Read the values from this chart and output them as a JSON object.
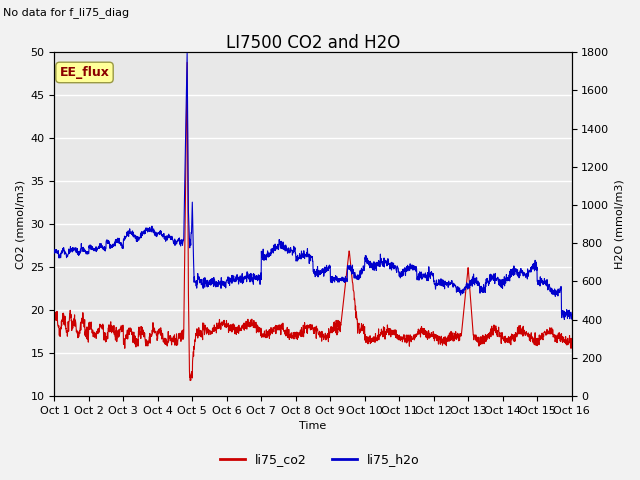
{
  "title": "LI7500 CO2 and H2O",
  "top_left_text": "No data for f_li75_diag",
  "annotation_text": "EE_flux",
  "xlabel": "Time",
  "ylabel_left": "CO2 (mmol/m3)",
  "ylabel_right": "H2O (mmol/m3)",
  "ylim_left": [
    10,
    50
  ],
  "ylim_right": [
    0,
    1800
  ],
  "yticks_left": [
    10,
    15,
    20,
    25,
    30,
    35,
    40,
    45,
    50
  ],
  "yticks_right": [
    0,
    200,
    400,
    600,
    800,
    1000,
    1200,
    1400,
    1600,
    1800
  ],
  "xtick_labels": [
    "Oct 1",
    "Oct 2",
    "Oct 3",
    "Oct 4",
    "Oct 5",
    "Oct 6",
    "Oct 7",
    "Oct 8",
    "Oct 9",
    "Oct 10",
    "Oct 11",
    "Oct 12",
    "Oct 13",
    "Oct 14",
    "Oct 15",
    "Oct 16"
  ],
  "legend_labels": [
    "li75_co2",
    "li75_h2o"
  ],
  "legend_colors": [
    "#cc0000",
    "#0000cc"
  ],
  "fig_facecolor": "#f2f2f2",
  "plot_facecolor": "#e8e8e8",
  "grid_color": "#ffffff",
  "title_fontsize": 12,
  "label_fontsize": 8,
  "tick_fontsize": 8,
  "annotation_fontsize": 8,
  "co2_color": "#cc0000",
  "h2o_color": "#0000cc",
  "linewidth": 0.8
}
